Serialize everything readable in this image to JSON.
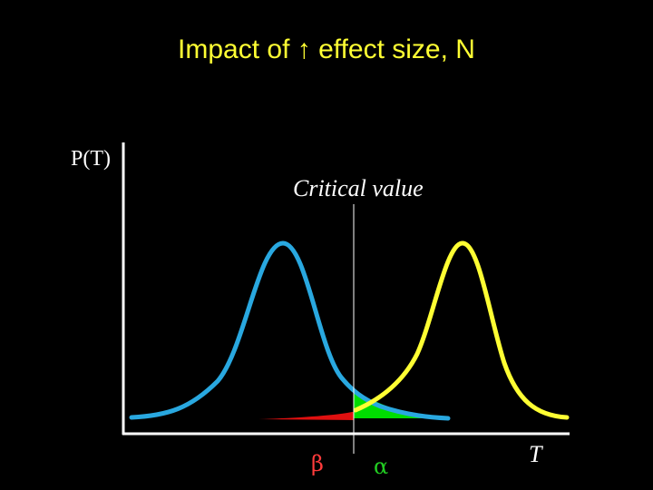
{
  "title": "Impact of ↑ effect size, N",
  "y_axis_label": "P(T)",
  "x_axis_label": "T",
  "critical_value_label": "Critical value",
  "beta_label": "β",
  "alpha_label": "α",
  "colors": {
    "background": "#000000",
    "title": "#ffff33",
    "null_curve": "#29a8e0",
    "alt_curve": "#ffff33",
    "beta_fill": "#e01010",
    "alpha_fill": "#00dd00",
    "axes": "#ffffff"
  }
}
